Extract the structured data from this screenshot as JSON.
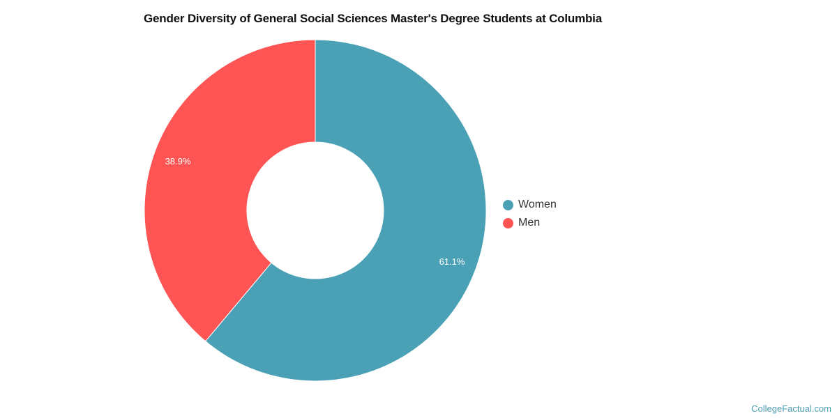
{
  "title": "Gender Diversity of General Social Sciences Master's Degree Students at Columbia",
  "legend": [
    {
      "label": "Women",
      "color": "#4aa0b4"
    },
    {
      "label": "Men",
      "color": "#fe5454"
    }
  ],
  "footer": "CollegeFactual.com",
  "chart_data": {
    "type": "pie",
    "donut": true,
    "title": "Gender Diversity of General Social Sciences Master's Degree Students at Columbia",
    "categories": [
      "Women",
      "Men"
    ],
    "values": [
      61.1,
      38.9
    ],
    "labels": [
      "61.1%",
      "38.9%"
    ],
    "colors": [
      "#4aa0b4",
      "#fe5454"
    ],
    "legend_position": "right"
  }
}
